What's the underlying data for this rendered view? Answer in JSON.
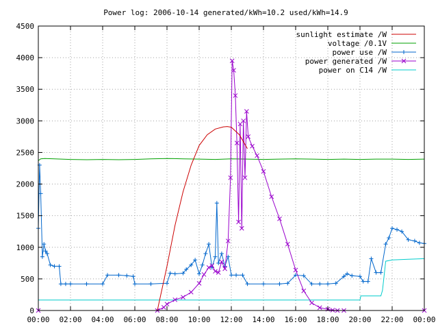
{
  "chart_data": {
    "type": "line",
    "title": "Power log: 2006-10-14 generated/kWh=10.2 used/kWh=14.9",
    "xlabel": "",
    "ylabel": "",
    "xlim": [
      0,
      24
    ],
    "ylim": [
      0,
      4500
    ],
    "x_ticks": [
      "00:00",
      "02:00",
      "04:00",
      "06:00",
      "08:00",
      "10:00",
      "12:00",
      "14:00",
      "16:00",
      "18:00",
      "20:00",
      "22:00",
      "00:00"
    ],
    "y_ticks": [
      "0",
      "500",
      "1000",
      "1500",
      "2000",
      "2500",
      "3000",
      "3500",
      "4000",
      "4500"
    ],
    "grid": true,
    "legend_position": "top-right",
    "series": [
      {
        "name": "sunlight estimate /W",
        "color": "#cc0000",
        "marker": "none",
        "x": [
          7.4,
          8.0,
          8.5,
          9.0,
          9.5,
          10.0,
          10.5,
          11.0,
          11.5,
          11.75,
          12.0,
          12.5,
          13.0
        ],
        "y": [
          0,
          700,
          1350,
          1880,
          2300,
          2610,
          2780,
          2870,
          2905,
          2910,
          2900,
          2780,
          2560
        ]
      },
      {
        "name": "voltage /0.1V",
        "color": "#00a000",
        "marker": "none",
        "x": [
          0.0,
          0.15,
          0.4,
          1.0,
          2.0,
          3.0,
          4.0,
          5.0,
          6.0,
          7.0,
          8.0,
          9.0,
          10.0,
          11.0,
          12.0,
          13.0,
          14.0,
          15.0,
          16.0,
          17.0,
          18.0,
          19.0,
          20.0,
          21.0,
          22.0,
          23.0,
          24.0
        ],
        "y": [
          2370,
          2400,
          2405,
          2400,
          2390,
          2385,
          2390,
          2385,
          2390,
          2400,
          2405,
          2400,
          2395,
          2390,
          2400,
          2395,
          2390,
          2395,
          2400,
          2395,
          2390,
          2395,
          2390,
          2395,
          2395,
          2390,
          2395
        ]
      },
      {
        "name": "power use /W",
        "color": "#0066cc",
        "marker": "plus",
        "x": [
          0.0,
          0.08,
          0.15,
          0.25,
          0.35,
          0.45,
          0.55,
          0.75,
          1.0,
          1.3,
          1.4,
          1.7,
          2.0,
          3.0,
          4.0,
          4.3,
          5.0,
          5.5,
          5.9,
          6.0,
          7.0,
          8.0,
          8.2,
          8.5,
          9.0,
          9.2,
          9.5,
          9.75,
          10.0,
          10.2,
          10.4,
          10.6,
          10.8,
          11.0,
          11.1,
          11.2,
          11.4,
          11.6,
          11.8,
          12.0,
          12.3,
          12.7,
          13.0,
          14.0,
          15.0,
          15.5,
          16.0,
          16.5,
          17.0,
          17.5,
          18.0,
          18.5,
          19.0,
          19.2,
          19.5,
          20.0,
          20.2,
          20.5,
          20.7,
          21.0,
          21.3,
          21.6,
          21.8,
          22.0,
          22.3,
          22.6,
          23.0,
          23.4,
          23.7,
          24.0
        ],
        "y": [
          1300,
          2300,
          1850,
          850,
          1050,
          940,
          900,
          720,
          700,
          700,
          420,
          420,
          420,
          420,
          420,
          560,
          560,
          550,
          540,
          420,
          420,
          430,
          590,
          580,
          590,
          650,
          720,
          800,
          580,
          720,
          900,
          1050,
          680,
          850,
          1700,
          750,
          900,
          700,
          850,
          560,
          560,
          560,
          420,
          420,
          420,
          430,
          560,
          550,
          420,
          420,
          420,
          430,
          540,
          580,
          550,
          540,
          460,
          460,
          820,
          600,
          600,
          1050,
          1150,
          1300,
          1280,
          1250,
          1120,
          1100,
          1070,
          1060
        ]
      },
      {
        "name": "power generated /W",
        "color": "#9900cc",
        "marker": "x",
        "x": [
          0.0,
          7.4,
          7.8,
          8.0,
          8.5,
          9.0,
          9.5,
          10.0,
          10.3,
          10.6,
          10.8,
          11.0,
          11.2,
          11.4,
          11.6,
          11.8,
          11.95,
          12.05,
          12.15,
          12.25,
          12.35,
          12.45,
          12.55,
          12.65,
          12.75,
          12.85,
          12.95,
          13.05,
          13.3,
          13.6,
          14.0,
          14.5,
          15.0,
          15.5,
          16.0,
          16.5,
          17.0,
          17.5,
          18.0,
          18.3,
          18.6,
          19.0,
          24.0
        ],
        "y": [
          0,
          0,
          50,
          100,
          170,
          210,
          290,
          430,
          570,
          680,
          710,
          620,
          600,
          770,
          660,
          1100,
          2100,
          3950,
          3800,
          3400,
          2650,
          1400,
          2950,
          1300,
          3000,
          2100,
          3150,
          2750,
          2600,
          2450,
          2200,
          1800,
          1450,
          1050,
          640,
          310,
          120,
          45,
          20,
          5,
          0,
          0,
          0
        ]
      },
      {
        "name": "power on C14 /W",
        "color": "#00cccc",
        "marker": "none",
        "x": [
          0.0,
          4.0,
          8.0,
          12.0,
          16.0,
          20.0,
          20.05,
          21.3,
          21.4,
          21.6,
          22.0,
          23.0,
          24.0
        ],
        "y": [
          165,
          165,
          165,
          165,
          165,
          165,
          230,
          230,
          320,
          780,
          800,
          810,
          820
        ]
      }
    ]
  }
}
